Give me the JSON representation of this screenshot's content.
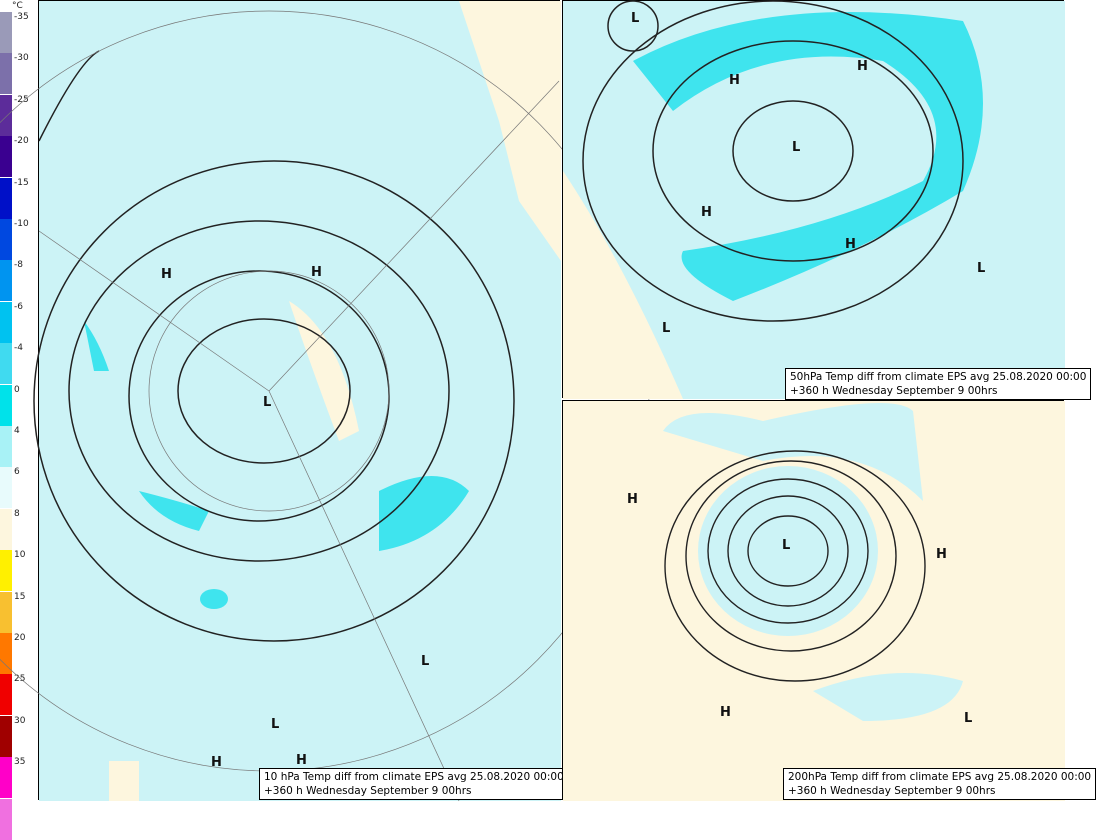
{
  "colorbar": {
    "unit": "°C",
    "labels": [
      "-35",
      "-30",
      "-25",
      "-20",
      "-15",
      "-10",
      "-8",
      "-6",
      "-4",
      "0",
      "4",
      "6",
      "8",
      "10",
      "15",
      "20",
      "25",
      "30",
      "35"
    ]
  },
  "panels": [
    {
      "caption": [
        "10 hPa Temp diff from climate EPS avg 25.08.2020 00:00",
        "+360 h Wednesday September 9 00hrs"
      ],
      "labels": [
        "H",
        "H",
        "L",
        "L",
        "L",
        "H",
        "H"
      ]
    },
    {
      "caption": [
        "50hPa Temp diff from climate EPS avg 25.08.2020 00:00",
        "+360 h Wednesday September 9 00hrs"
      ],
      "labels": [
        "L",
        "H",
        "H",
        "L",
        "H",
        "H",
        "L",
        "L"
      ]
    },
    {
      "caption": [
        "200hPa Temp diff from climate EPS avg 25.08.2020 00:00",
        "+360 h Wednesday September 9 00hrs"
      ],
      "labels": [
        "H",
        "L",
        "H",
        "H",
        "L"
      ]
    }
  ]
}
